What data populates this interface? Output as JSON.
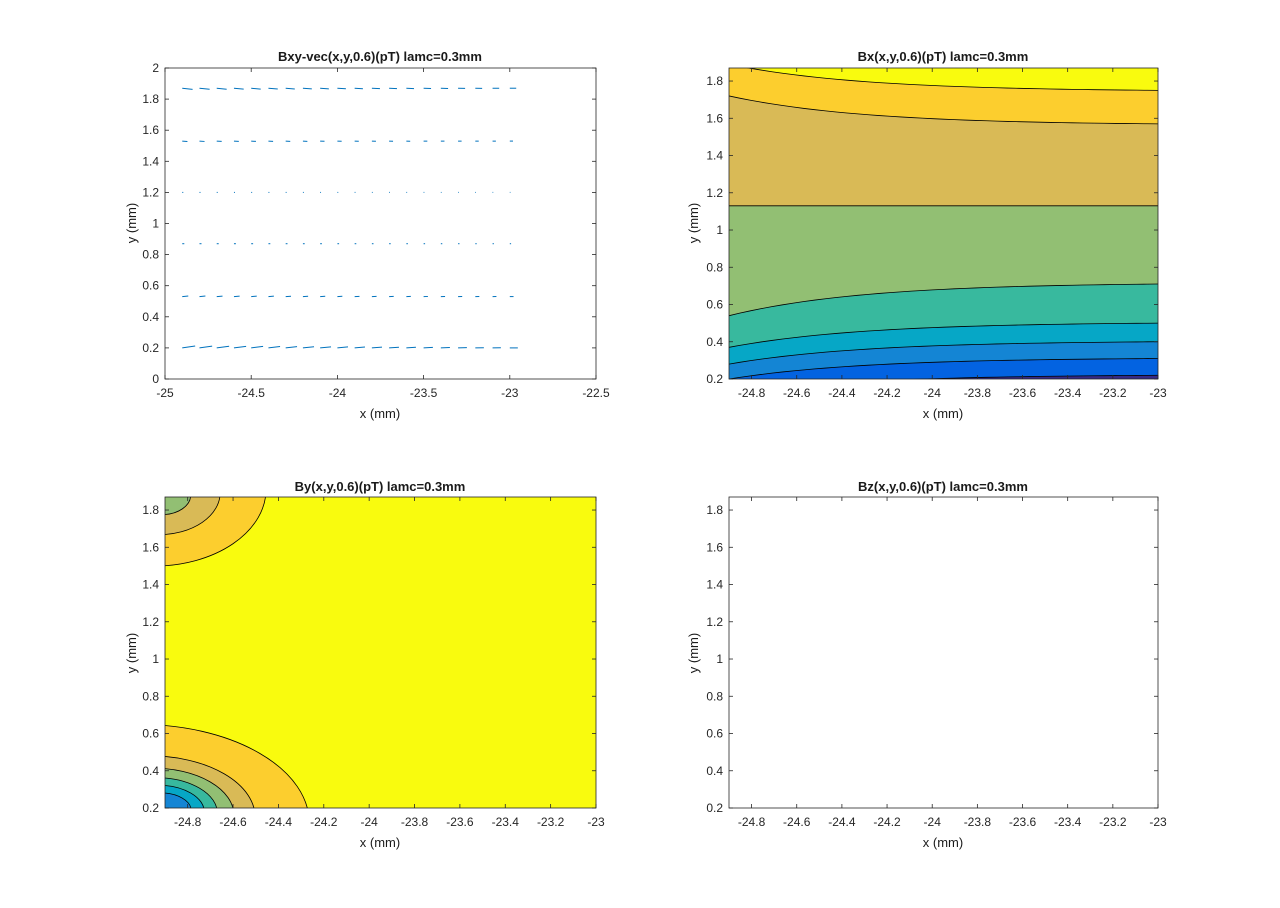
{
  "chart_data": [
    {
      "type": "quiver",
      "title": "Bxy-vec(x,y,0.6)(pT) lamc=0.3mm",
      "xlabel": "x (mm)",
      "ylabel": "y (mm)",
      "xlim": [
        -25,
        -22.5
      ],
      "ylim": [
        0,
        2
      ],
      "xticks": [
        -25,
        -24.5,
        -24,
        -23.5,
        -23,
        -22.5
      ],
      "yticks": [
        0,
        0.2,
        0.4,
        0.6,
        0.8,
        1,
        1.2,
        1.4,
        1.6,
        1.8,
        2
      ],
      "grid": false,
      "color": "#0072bd",
      "x_points": [
        -24.9,
        -24.8,
        -24.7,
        -24.6,
        -24.5,
        -24.4,
        -24.3,
        -24.2,
        -24.1,
        -24.0,
        -23.9,
        -23.8,
        -23.7,
        -23.6,
        -23.5,
        -23.4,
        -23.3,
        -23.2,
        -23.1,
        -23.0
      ],
      "rows": [
        {
          "y": 1.87,
          "scale": 0.06,
          "tilt": -0.012
        },
        {
          "y": 1.53,
          "scale": 0.03,
          "tilt": -0.004
        },
        {
          "y": 1.2,
          "scale": 0.006,
          "tilt": 0
        },
        {
          "y": 0.87,
          "scale": 0.012,
          "tilt": 0
        },
        {
          "y": 0.53,
          "scale": 0.035,
          "tilt": 0.006
        },
        {
          "y": 0.2,
          "scale": 0.075,
          "tilt": 0.02
        }
      ]
    },
    {
      "type": "contour",
      "title": "Bx(x,y,0.6)(pT) lamc=0.3mm",
      "xlabel": "x (mm)",
      "ylabel": "y (mm)",
      "xlim": [
        -24.9,
        -23
      ],
      "ylim": [
        0.2,
        1.87
      ],
      "xticks": [
        -24.8,
        -24.6,
        -24.4,
        -24.2,
        -24,
        -23.8,
        -23.6,
        -23.4,
        -23.2,
        -23
      ],
      "yticks": [
        0.2,
        0.4,
        0.6,
        0.8,
        1,
        1.2,
        1.4,
        1.6,
        1.8
      ],
      "level_colors": [
        "#352a87",
        "#0363e1",
        "#1485d4",
        "#06a7c6",
        "#38b99e",
        "#92bf73",
        "#d9ba56",
        "#fcce2e",
        "#f9fb0e"
      ],
      "boundaries": [
        {
          "y_left": 0.12,
          "y_right": 0.22
        },
        {
          "y_left": 0.2,
          "y_right": 0.31
        },
        {
          "y_left": 0.28,
          "y_right": 0.4
        },
        {
          "y_left": 0.37,
          "y_right": 0.5
        },
        {
          "y_left": 0.54,
          "y_right": 0.71
        },
        {
          "y_left": 1.13,
          "y_right": 1.13
        },
        {
          "y_left": 1.72,
          "y_right": 1.57
        },
        {
          "y_left": 1.89,
          "y_right": 1.75
        }
      ]
    },
    {
      "type": "contour",
      "title": "By(x,y,0.6)(pT) lamc=0.3mm",
      "xlabel": "x (mm)",
      "ylabel": "y (mm)",
      "xlim": [
        -24.9,
        -23
      ],
      "ylim": [
        0.2,
        1.87
      ],
      "xticks": [
        -24.8,
        -24.6,
        -24.4,
        -24.2,
        -24,
        -23.8,
        -23.6,
        -23.4,
        -23.2,
        -23
      ],
      "yticks": [
        0.2,
        0.4,
        0.6,
        0.8,
        1,
        1.2,
        1.4,
        1.6,
        1.8
      ],
      "level_colors": [
        "#352a87",
        "#0363e1",
        "#1485d4",
        "#06a7c6",
        "#38b99e",
        "#92bf73",
        "#d9ba56",
        "#fcce2e",
        "#f9fb0e"
      ],
      "background_level": "#f9fb0e",
      "bottom_left_radii": [
        0.88,
        0.55,
        0.42,
        0.32,
        0.24,
        0.16
      ],
      "top_left_radii": [
        0.55,
        0.3,
        0.14
      ]
    },
    {
      "type": "contour",
      "title": "Bz(x,y,0.6)(pT) lamc=0.3mm",
      "xlabel": "x (mm)",
      "ylabel": "y (mm)",
      "xlim": [
        -24.9,
        -23
      ],
      "ylim": [
        0.2,
        1.87
      ],
      "xticks": [
        -24.8,
        -24.6,
        -24.4,
        -24.2,
        -24,
        -23.8,
        -23.6,
        -23.4,
        -23.2,
        -23
      ],
      "yticks": [
        0.2,
        0.4,
        0.6,
        0.8,
        1,
        1.2,
        1.4,
        1.6,
        1.8
      ],
      "empty": true
    }
  ]
}
